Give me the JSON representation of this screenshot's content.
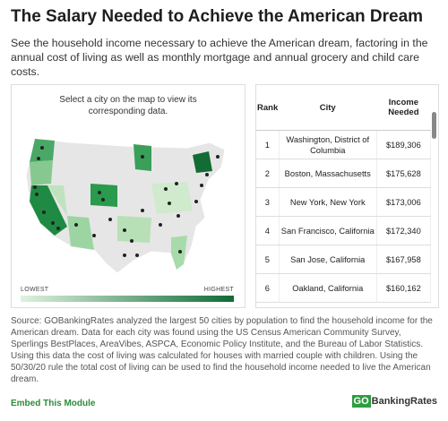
{
  "header": {
    "title": "The Salary Needed to Achieve the American Dream",
    "subtitle": "See the household income necessary to achieve the American dream, factoring in the annual cost of living as well as monthly mortgage and annual grocery and child care costs."
  },
  "map": {
    "instruction": "Select a city on the map to view its corresponding data.",
    "legend": {
      "low": "LOWEST",
      "high": "HIGHEST"
    }
  },
  "table": {
    "columns": [
      "Rank",
      "City",
      "Income Needed"
    ],
    "rows": [
      [
        "1",
        "Washington, District of Columbia",
        "$189,306"
      ],
      [
        "2",
        "Boston, Massachusetts",
        "$175,628"
      ],
      [
        "3",
        "New York, New York",
        "$173,006"
      ],
      [
        "4",
        "San Francisco, California",
        "$172,340"
      ],
      [
        "5",
        "San Jose, California",
        "$167,958"
      ],
      [
        "6",
        "Oakland, California",
        "$160,162"
      ]
    ]
  },
  "source": "Source: GOBankingRates analyzed the largest 50 cities by population to find the household income for the American dream. Data for each city was found using the US Census American Community Survey, Sperlings BestPlaces, AreaVibes, ASPCA, Economic Policy Institute, and the Bureau of Labor Statistics. Using this data the cost of living was calculated for houses with married couple with children. Using the 50/30/20 rule the total cost of living can be used to find the household income needed to live the American dream.",
  "footer": {
    "embed": "Embed This Module",
    "logo_prefix": "GO",
    "logo_name": "BankingRates"
  }
}
